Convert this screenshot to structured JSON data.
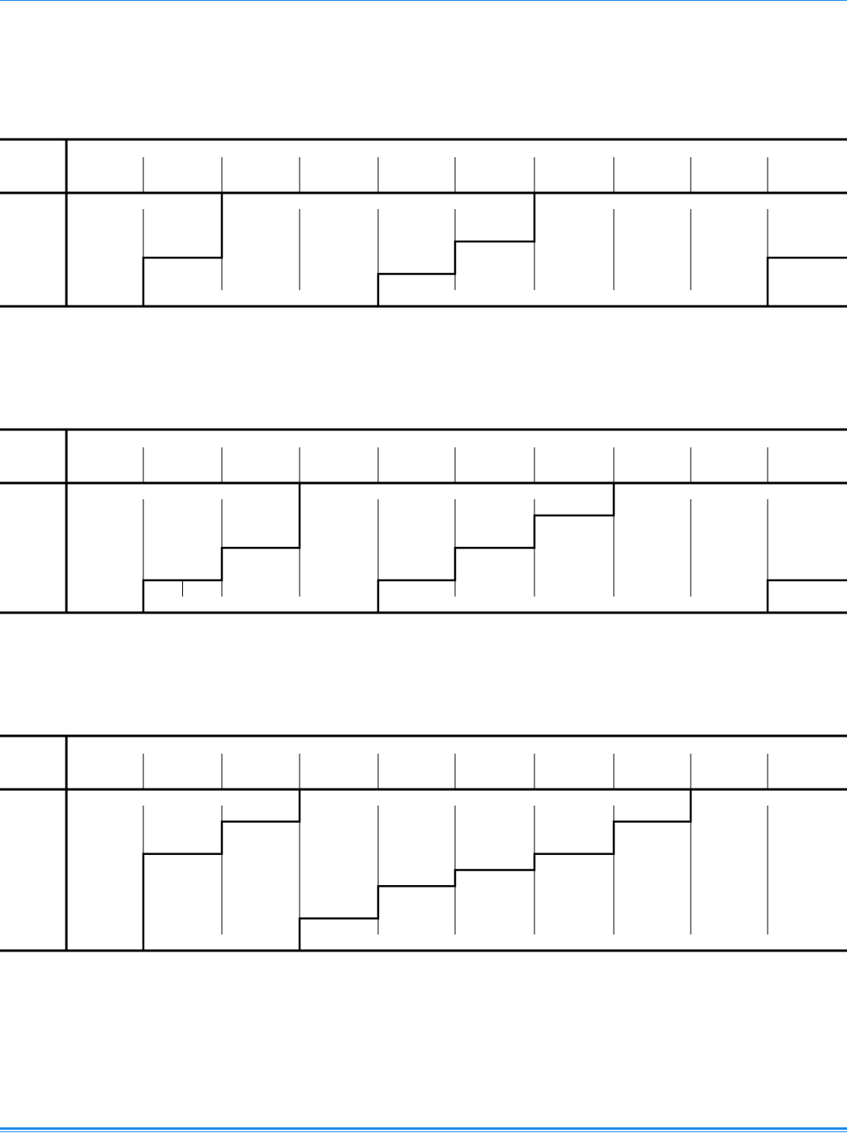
{
  "colors": {
    "rule": "#1e88e5",
    "ink": "#000000"
  },
  "diagrams": [
    {
      "levels": [
        0,
        3,
        7,
        7,
        2,
        4,
        7,
        7,
        7,
        3
      ],
      "max_level": 7,
      "spikes": [],
      "extra_ticks": []
    },
    {
      "levels": [
        0,
        1,
        2,
        4,
        1,
        2,
        3,
        4,
        4,
        1
      ],
      "max_level": 4,
      "spikes": [],
      "extra_ticks": [
        1
      ]
    },
    {
      "levels": [
        0,
        6,
        8,
        2,
        4,
        5,
        6,
        8,
        10,
        10
      ],
      "max_level": 10,
      "spikes": [
        3
      ],
      "extra_ticks": []
    }
  ]
}
